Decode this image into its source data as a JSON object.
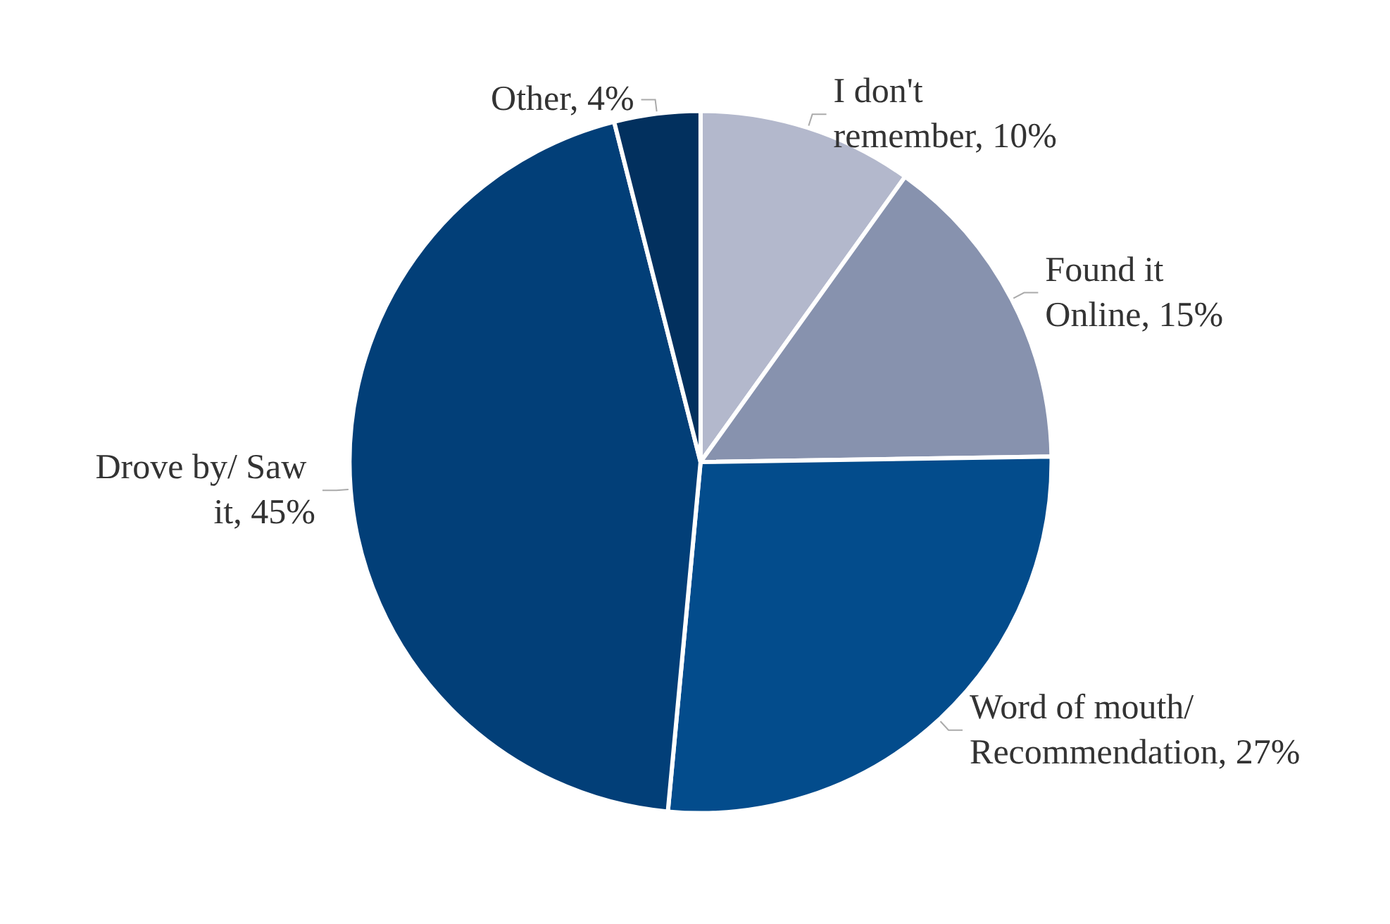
{
  "chart_data": {
    "type": "pie",
    "categories": [
      "I don't remember",
      "Found it Online",
      "Word of mouth/ Recommendation",
      "Drove by/ Saw it",
      "Other"
    ],
    "values": [
      10,
      15,
      27,
      45,
      4
    ],
    "value_labels": [
      "10%",
      "15%",
      "27%",
      "45%",
      "4%"
    ],
    "colors": [
      "#b3b8cc",
      "#8792ae",
      "#034c8c",
      "#023f78",
      "#02305e"
    ],
    "legend": false
  }
}
